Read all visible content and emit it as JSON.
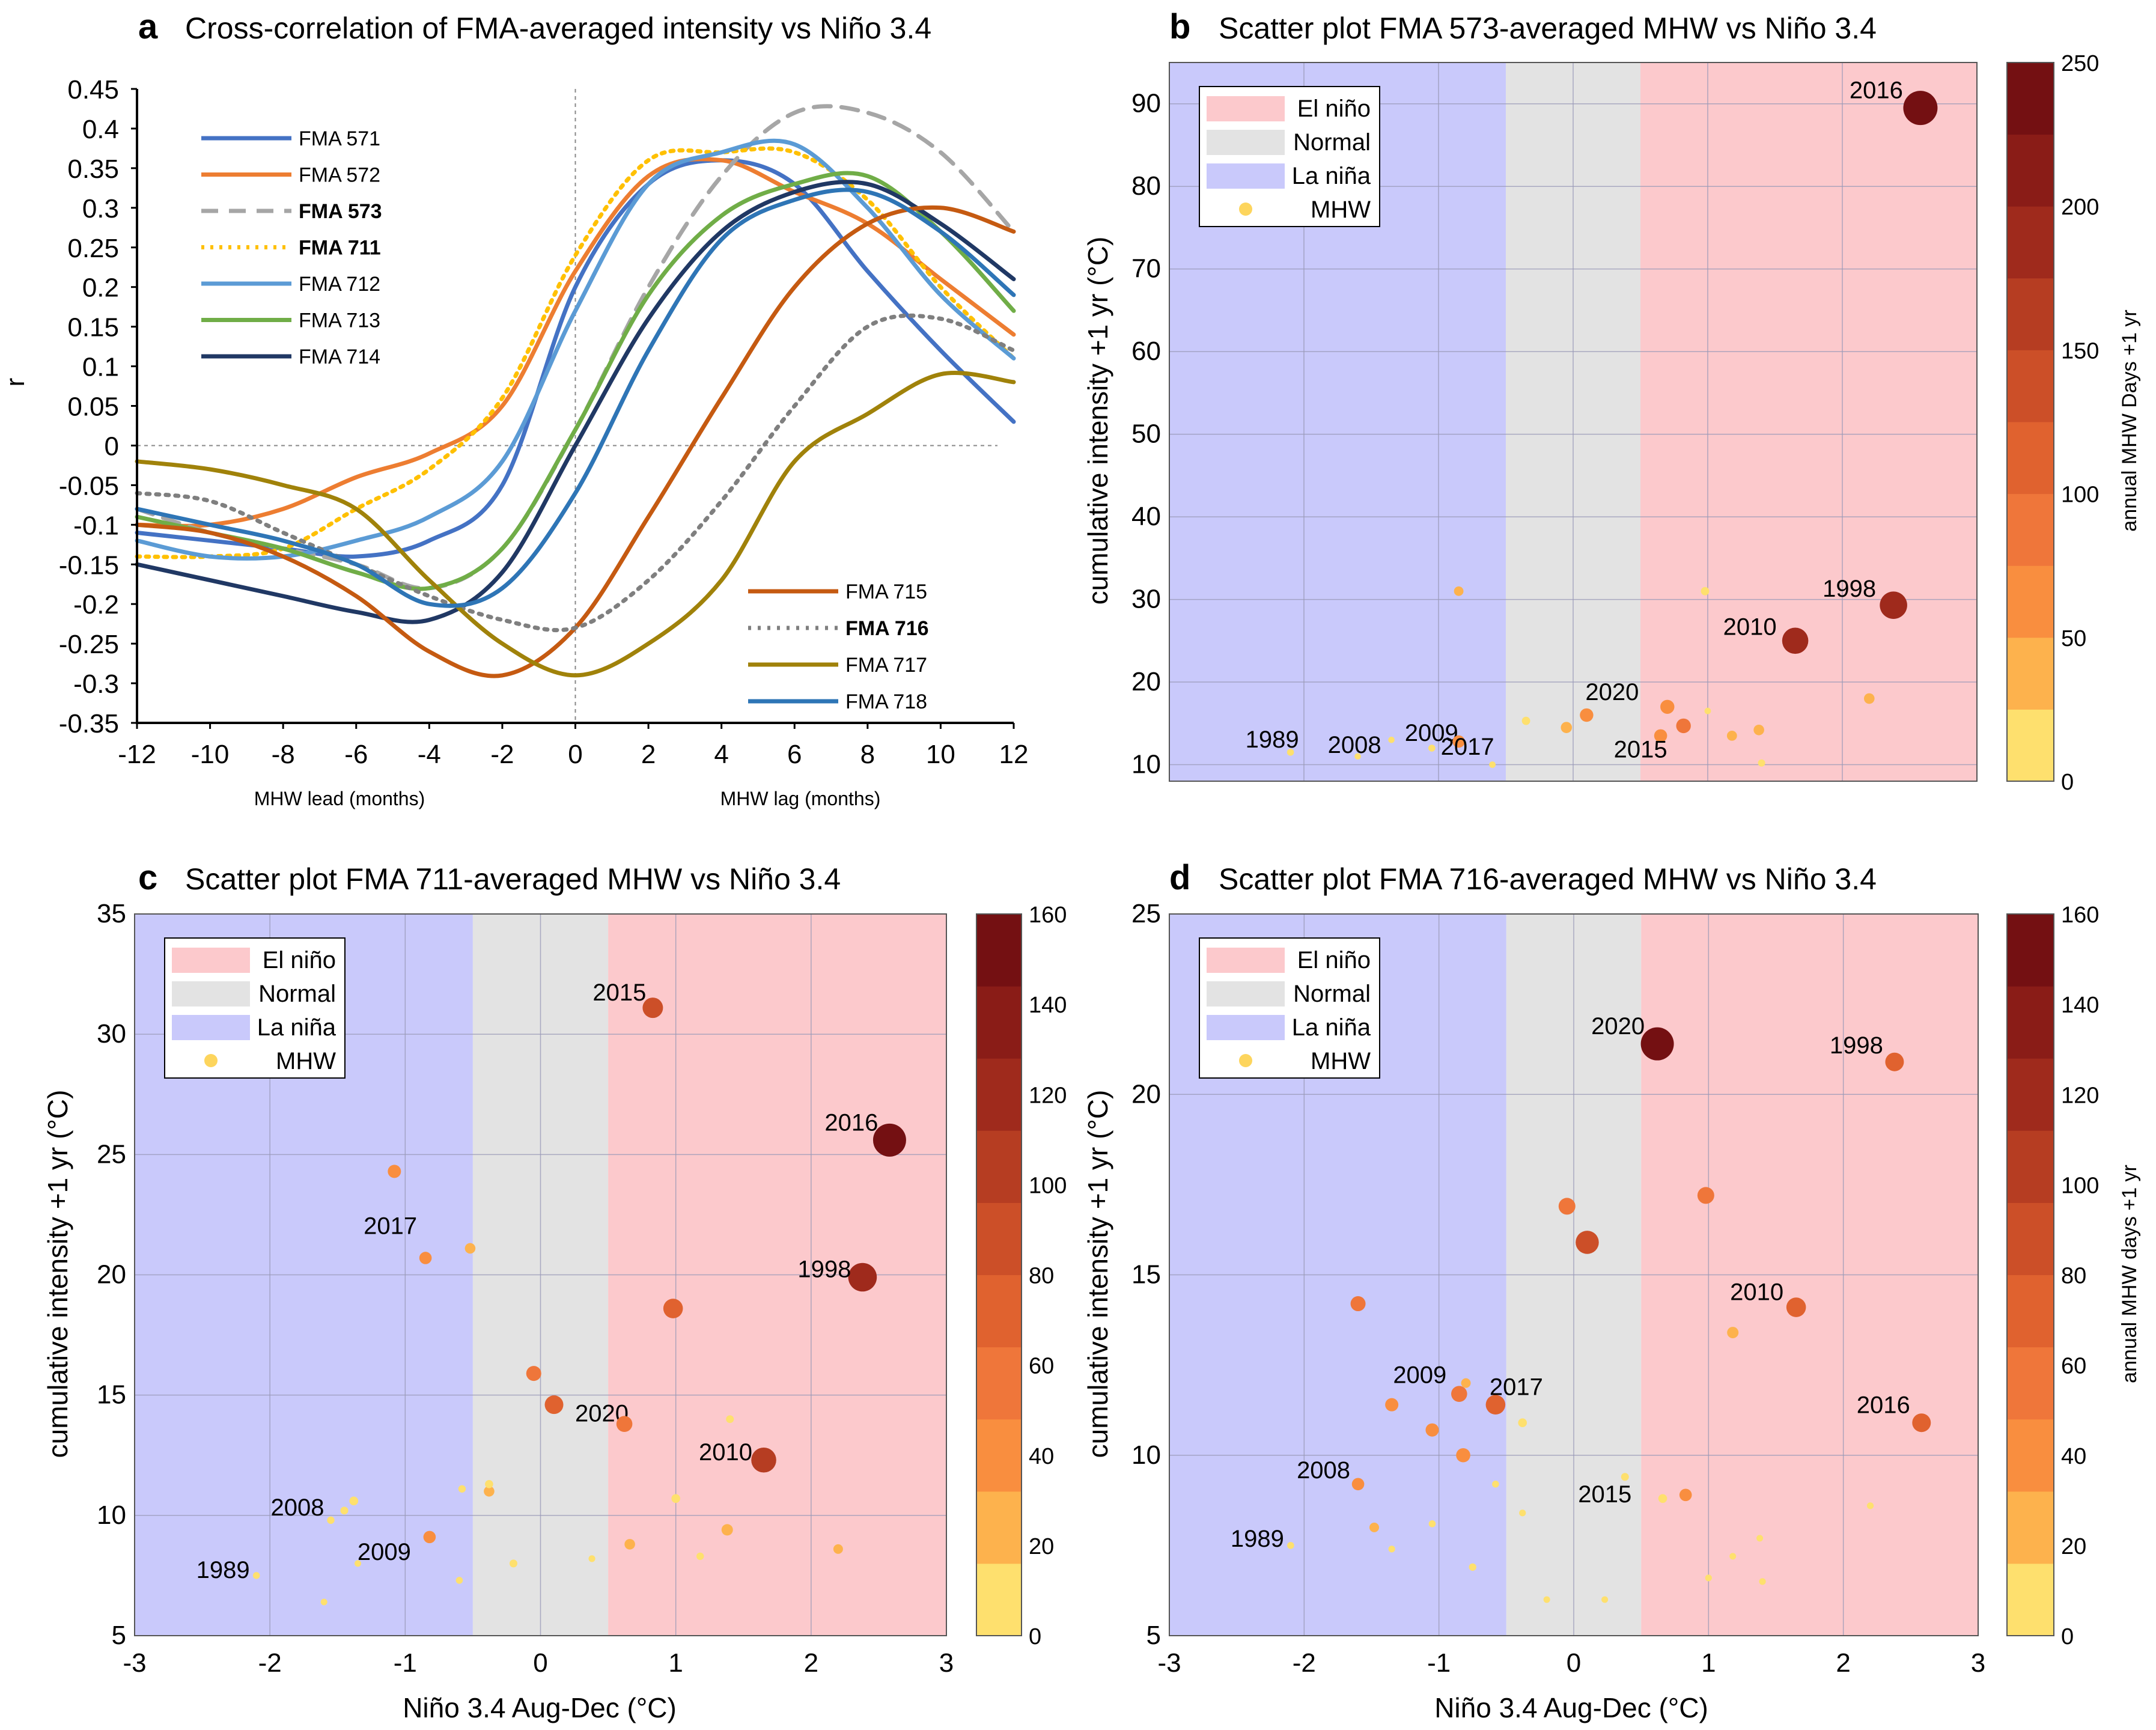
{
  "figure": {
    "panel_a": {
      "letter": "a",
      "title": "Cross-correlation of FMA-averaged  intensity vs Niño 3.4",
      "ylabel": "r",
      "xlabel_lead": "MHW lead (months)",
      "xlabel_lag": "MHW lag (months)"
    },
    "panel_b": {
      "letter": "b",
      "title": "Scatter plot FMA 573-averaged MHW vs Niño 3.4",
      "ylabel": "cumulative intensity +1 yr (°C)",
      "cblabel": "annual MHW Days +1 yr"
    },
    "panel_c": {
      "letter": "c",
      "title": "Scatter plot FMA 711-averaged MHW vs Niño 3.4",
      "ylabel": "cumulative intensity +1 yr (°C)",
      "xlabel": "Niño 3.4 Aug-Dec (°C)"
    },
    "panel_d": {
      "letter": "d",
      "title": "Scatter plot FMA 716-averaged MHW vs Niño 3.4",
      "ylabel": "cumulative intensity +1 yr (°C)",
      "xlabel": "Niño 3.4 Aug-Dec (°C)",
      "cblabel": "annual MHW days +1 yr"
    },
    "legend_regimes": [
      "El niño",
      "Normal",
      "La niña",
      "MHW"
    ],
    "colors": {
      "el_nino": "#fcc9cc",
      "normal": "#e3e3e3",
      "la_nina": "#c9c9fb",
      "mhw_marker": "#fdd55d"
    }
  },
  "chart_data": [
    {
      "type": "line",
      "title": "Cross-correlation of FMA-averaged  intensity vs Niño 3.4",
      "xlabel": "MHW lead (months) / MHW lag (months)",
      "ylabel": "r",
      "xlim": [
        -12,
        12
      ],
      "ylim": [
        -0.35,
        0.45
      ],
      "xticks": [
        "-12",
        "-10",
        "-8",
        "-6",
        "-4",
        "-2",
        "0",
        "2",
        "4",
        "6",
        "8",
        "10",
        "12"
      ],
      "yticks": [
        "0.45",
        "0.4",
        "0.35",
        "0.3",
        "0.25",
        "0.2",
        "0.15",
        "0.1",
        "0.05",
        "0",
        "-0.05",
        "-0.1",
        "-0.15",
        "-0.2",
        "-0.25",
        "-0.3",
        "-0.35"
      ],
      "x": [
        -12,
        -10,
        -8,
        -6,
        -4,
        -2,
        0,
        2,
        4,
        6,
        8,
        10,
        12
      ],
      "series": [
        {
          "name": "FMA 571",
          "color": "#4472c4",
          "dash": "",
          "bold": false,
          "values": [
            -0.11,
            -0.12,
            -0.13,
            -0.14,
            -0.12,
            -0.05,
            0.2,
            0.33,
            0.36,
            0.33,
            0.22,
            0.12,
            0.03
          ]
        },
        {
          "name": "FMA 572",
          "color": "#ed7d31",
          "dash": "",
          "bold": false,
          "values": [
            -0.1,
            -0.1,
            -0.08,
            -0.04,
            -0.01,
            0.05,
            0.22,
            0.34,
            0.36,
            0.32,
            0.28,
            0.21,
            0.14
          ]
        },
        {
          "name": "FMA 573",
          "color": "#a6a6a6",
          "dash": "28 18",
          "bold": true,
          "values": [
            -0.08,
            -0.11,
            -0.13,
            -0.15,
            -0.18,
            -0.13,
            0.02,
            0.2,
            0.34,
            0.42,
            0.42,
            0.37,
            0.27
          ]
        },
        {
          "name": "FMA 711",
          "color": "#ffc000",
          "dash": "5 10",
          "bold": true,
          "values": [
            -0.14,
            -0.14,
            -0.13,
            -0.08,
            -0.03,
            0.06,
            0.24,
            0.36,
            0.37,
            0.37,
            0.31,
            0.2,
            0.11
          ]
        },
        {
          "name": "FMA 712",
          "color": "#5b9bd5",
          "dash": "",
          "bold": false,
          "values": [
            -0.12,
            -0.14,
            -0.14,
            -0.12,
            -0.09,
            -0.02,
            0.17,
            0.33,
            0.37,
            0.38,
            0.3,
            0.19,
            0.11
          ]
        },
        {
          "name": "FMA 713",
          "color": "#70ad47",
          "dash": "",
          "bold": false,
          "values": [
            -0.09,
            -0.11,
            -0.13,
            -0.16,
            -0.18,
            -0.13,
            0.02,
            0.19,
            0.29,
            0.33,
            0.34,
            0.27,
            0.17
          ]
        },
        {
          "name": "FMA 714",
          "color": "#203864",
          "dash": "",
          "bold": false,
          "values": [
            -0.15,
            -0.17,
            -0.19,
            -0.21,
            -0.22,
            -0.16,
            0.0,
            0.16,
            0.27,
            0.32,
            0.33,
            0.28,
            0.21
          ]
        },
        {
          "name": "FMA 715",
          "color": "#c55a11",
          "dash": "",
          "bold": false,
          "values": [
            -0.1,
            -0.11,
            -0.14,
            -0.19,
            -0.26,
            -0.29,
            -0.23,
            -0.09,
            0.06,
            0.2,
            0.28,
            0.3,
            0.27
          ]
        },
        {
          "name": "FMA 716",
          "color": "#7f7f7f",
          "dash": "5 11",
          "bold": true,
          "values": [
            -0.06,
            -0.07,
            -0.11,
            -0.15,
            -0.19,
            -0.22,
            -0.23,
            -0.17,
            -0.07,
            0.05,
            0.15,
            0.16,
            0.12
          ]
        },
        {
          "name": "FMA 717",
          "color": "#a0820a",
          "dash": "",
          "bold": false,
          "values": [
            -0.02,
            -0.03,
            -0.05,
            -0.08,
            -0.17,
            -0.25,
            -0.29,
            -0.25,
            -0.17,
            -0.02,
            0.04,
            0.09,
            0.08
          ]
        },
        {
          "name": "FMA 718",
          "color": "#2e75b6",
          "dash": "",
          "bold": false,
          "values": [
            -0.08,
            -0.1,
            -0.12,
            -0.15,
            -0.2,
            -0.18,
            -0.06,
            0.12,
            0.26,
            0.31,
            0.32,
            0.27,
            0.19
          ]
        }
      ]
    },
    {
      "type": "scatter",
      "title": "Scatter plot FMA 573-averaged MHW vs Niño 3.4",
      "ylabel": "cumulative intensity +1 yr (°C)",
      "xlim": [
        -3,
        3
      ],
      "ylim": [
        8,
        95
      ],
      "yticks": [
        "90",
        "80",
        "70",
        "60",
        "50",
        "40",
        "30",
        "20",
        "10"
      ],
      "colorbar": {
        "label": "annual MHW Days +1 yr",
        "ticks": [
          "250",
          "200",
          "150",
          "100",
          "50",
          "0"
        ],
        "max": 250
      },
      "points": [
        {
          "x": -2.1,
          "y": 11.5,
          "days": 8,
          "label": "1989"
        },
        {
          "x": -1.6,
          "y": 11.0,
          "days": 3,
          "label": "2008"
        },
        {
          "x": -1.35,
          "y": 13.0,
          "days": 3,
          "label": ""
        },
        {
          "x": -1.05,
          "y": 12.0,
          "days": 8,
          "label": "2009"
        },
        {
          "x": -0.85,
          "y": 12.8,
          "days": 55,
          "label": "2017"
        },
        {
          "x": -0.85,
          "y": 31.0,
          "days": 30,
          "label": ""
        },
        {
          "x": -0.6,
          "y": 10.0,
          "days": 4,
          "label": ""
        },
        {
          "x": -0.35,
          "y": 15.3,
          "days": 20,
          "label": ""
        },
        {
          "x": -0.05,
          "y": 14.5,
          "days": 45,
          "label": ""
        },
        {
          "x": 0.1,
          "y": 16.0,
          "days": 65,
          "label": "2020"
        },
        {
          "x": 0.65,
          "y": 13.5,
          "days": 60,
          "label": "2015"
        },
        {
          "x": 0.7,
          "y": 17.0,
          "days": 70,
          "label": ""
        },
        {
          "x": 0.82,
          "y": 14.7,
          "days": 75,
          "label": ""
        },
        {
          "x": 0.98,
          "y": 31.0,
          "days": 20,
          "label": ""
        },
        {
          "x": 1.0,
          "y": 16.5,
          "days": 4,
          "label": ""
        },
        {
          "x": 1.18,
          "y": 13.5,
          "days": 35,
          "label": ""
        },
        {
          "x": 1.38,
          "y": 14.2,
          "days": 40,
          "label": ""
        },
        {
          "x": 1.4,
          "y": 10.2,
          "days": 10,
          "label": ""
        },
        {
          "x": 1.65,
          "y": 25.0,
          "days": 175,
          "label": "2010"
        },
        {
          "x": 2.2,
          "y": 18.0,
          "days": 40,
          "label": ""
        },
        {
          "x": 2.38,
          "y": 29.3,
          "days": 185,
          "label": "1998"
        },
        {
          "x": 2.58,
          "y": 89.5,
          "days": 245,
          "label": "2016"
        }
      ]
    },
    {
      "type": "scatter",
      "title": "Scatter plot FMA 711-averaged MHW vs Niño 3.4",
      "xlabel": "Niño 3.4 Aug-Dec (°C)",
      "ylabel": "cumulative intensity +1 yr (°C)",
      "xlim": [
        -3,
        3
      ],
      "ylim": [
        5,
        35
      ],
      "xticks": [
        "-3",
        "-2",
        "-1",
        "0",
        "1",
        "2",
        "3"
      ],
      "yticks": [
        "35",
        "30",
        "25",
        "20",
        "15",
        "10",
        "5"
      ],
      "colorbar": {
        "label": "",
        "ticks": [
          "160",
          "140",
          "120",
          "100",
          "80",
          "60",
          "40",
          "20",
          "0"
        ],
        "max": 160
      },
      "points": [
        {
          "x": -2.1,
          "y": 7.5,
          "days": 5,
          "label": "1989"
        },
        {
          "x": -1.6,
          "y": 6.4,
          "days": 3,
          "label": ""
        },
        {
          "x": -1.55,
          "y": 9.8,
          "days": 8,
          "label": "2008"
        },
        {
          "x": -1.45,
          "y": 10.2,
          "days": 10,
          "label": ""
        },
        {
          "x": -1.38,
          "y": 10.6,
          "days": 15,
          "label": ""
        },
        {
          "x": -1.35,
          "y": 8.0,
          "days": 3,
          "label": ""
        },
        {
          "x": -1.08,
          "y": 24.3,
          "days": 40,
          "label": ""
        },
        {
          "x": -0.85,
          "y": 20.7,
          "days": 35,
          "label": "2017"
        },
        {
          "x": -0.82,
          "y": 9.1,
          "days": 35,
          "label": "2009"
        },
        {
          "x": -0.6,
          "y": 7.3,
          "days": 5,
          "label": ""
        },
        {
          "x": -0.58,
          "y": 11.1,
          "days": 8,
          "label": ""
        },
        {
          "x": -0.52,
          "y": 21.1,
          "days": 25,
          "label": ""
        },
        {
          "x": -0.38,
          "y": 11.0,
          "days": 25,
          "label": ""
        },
        {
          "x": -0.38,
          "y": 11.3,
          "days": 12,
          "label": ""
        },
        {
          "x": -0.2,
          "y": 8.0,
          "days": 10,
          "label": ""
        },
        {
          "x": -0.05,
          "y": 15.9,
          "days": 50,
          "label": ""
        },
        {
          "x": 0.1,
          "y": 14.6,
          "days": 70,
          "label": "2020"
        },
        {
          "x": 0.38,
          "y": 8.2,
          "days": 4,
          "label": ""
        },
        {
          "x": 0.62,
          "y": 13.8,
          "days": 55,
          "label": ""
        },
        {
          "x": 0.66,
          "y": 8.8,
          "days": 25,
          "label": ""
        },
        {
          "x": 0.83,
          "y": 31.1,
          "days": 80,
          "label": "2015"
        },
        {
          "x": 0.98,
          "y": 18.6,
          "days": 75,
          "label": ""
        },
        {
          "x": 1.0,
          "y": 10.7,
          "days": 15,
          "label": ""
        },
        {
          "x": 1.18,
          "y": 8.3,
          "days": 8,
          "label": ""
        },
        {
          "x": 1.38,
          "y": 9.4,
          "days": 30,
          "label": ""
        },
        {
          "x": 1.4,
          "y": 14.0,
          "days": 10,
          "label": ""
        },
        {
          "x": 1.65,
          "y": 12.3,
          "days": 105,
          "label": "2010"
        },
        {
          "x": 2.2,
          "y": 8.6,
          "days": 20,
          "label": ""
        },
        {
          "x": 2.38,
          "y": 19.9,
          "days": 125,
          "label": "1998"
        },
        {
          "x": 2.58,
          "y": 25.6,
          "days": 150,
          "label": "2016"
        }
      ]
    },
    {
      "type": "scatter",
      "title": "Scatter plot FMA 716-averaged MHW vs Niño 3.4",
      "xlabel": "Niño 3.4 Aug-Dec (°C)",
      "ylabel": "cumulative intensity +1 yr (°C)",
      "xlim": [
        -3,
        3
      ],
      "ylim": [
        5,
        25
      ],
      "xticks": [
        "-3",
        "-2",
        "-1",
        "0",
        "1",
        "2",
        "3"
      ],
      "yticks": [
        "25",
        "20",
        "15",
        "10",
        "5"
      ],
      "colorbar": {
        "label": "annual MHW days +1 yr",
        "ticks": [
          "160",
          "140",
          "120",
          "100",
          "80",
          "60",
          "40",
          "20",
          "0"
        ],
        "max": 160
      },
      "points": [
        {
          "x": -2.1,
          "y": 7.5,
          "days": 5,
          "label": "1989"
        },
        {
          "x": -1.6,
          "y": 9.2,
          "days": 35,
          "label": "2008"
        },
        {
          "x": -1.6,
          "y": 14.2,
          "days": 50,
          "label": ""
        },
        {
          "x": -1.48,
          "y": 8.0,
          "days": 20,
          "label": ""
        },
        {
          "x": -1.35,
          "y": 11.4,
          "days": 40,
          "label": ""
        },
        {
          "x": -1.35,
          "y": 7.4,
          "days": 4,
          "label": ""
        },
        {
          "x": -1.05,
          "y": 10.7,
          "days": 40,
          "label": ""
        },
        {
          "x": -1.05,
          "y": 8.1,
          "days": 5,
          "label": ""
        },
        {
          "x": -0.85,
          "y": 11.7,
          "days": 55,
          "label": "2009"
        },
        {
          "x": -0.82,
          "y": 10.0,
          "days": 45,
          "label": ""
        },
        {
          "x": -0.8,
          "y": 12.0,
          "days": 20,
          "label": ""
        },
        {
          "x": -0.75,
          "y": 6.9,
          "days": 8,
          "label": ""
        },
        {
          "x": -0.58,
          "y": 11.4,
          "days": 75,
          "label": "2017"
        },
        {
          "x": -0.58,
          "y": 9.2,
          "days": 5,
          "label": ""
        },
        {
          "x": -0.38,
          "y": 10.9,
          "days": 15,
          "label": ""
        },
        {
          "x": -0.38,
          "y": 8.4,
          "days": 4,
          "label": ""
        },
        {
          "x": -0.2,
          "y": 6.0,
          "days": 3,
          "label": ""
        },
        {
          "x": -0.05,
          "y": 16.9,
          "days": 60,
          "label": ""
        },
        {
          "x": 0.1,
          "y": 15.9,
          "days": 95,
          "label": ""
        },
        {
          "x": 0.23,
          "y": 6.0,
          "days": 3,
          "label": ""
        },
        {
          "x": 0.38,
          "y": 9.4,
          "days": 10,
          "label": "2015"
        },
        {
          "x": 0.62,
          "y": 21.4,
          "days": 150,
          "label": "2020"
        },
        {
          "x": 0.66,
          "y": 8.8,
          "days": 15,
          "label": ""
        },
        {
          "x": 0.83,
          "y": 8.9,
          "days": 35,
          "label": ""
        },
        {
          "x": 0.98,
          "y": 17.2,
          "days": 60,
          "label": ""
        },
        {
          "x": 1.0,
          "y": 6.6,
          "days": 4,
          "label": ""
        },
        {
          "x": 1.18,
          "y": 13.4,
          "days": 30,
          "label": ""
        },
        {
          "x": 1.18,
          "y": 7.2,
          "days": 3,
          "label": ""
        },
        {
          "x": 1.38,
          "y": 7.7,
          "days": 3,
          "label": ""
        },
        {
          "x": 1.4,
          "y": 6.5,
          "days": 4,
          "label": ""
        },
        {
          "x": 1.65,
          "y": 14.1,
          "days": 75,
          "label": "2010"
        },
        {
          "x": 2.2,
          "y": 8.6,
          "days": 4,
          "label": ""
        },
        {
          "x": 2.38,
          "y": 20.9,
          "days": 70,
          "label": "1998"
        },
        {
          "x": 2.58,
          "y": 10.9,
          "days": 70,
          "label": "2016"
        }
      ]
    }
  ]
}
